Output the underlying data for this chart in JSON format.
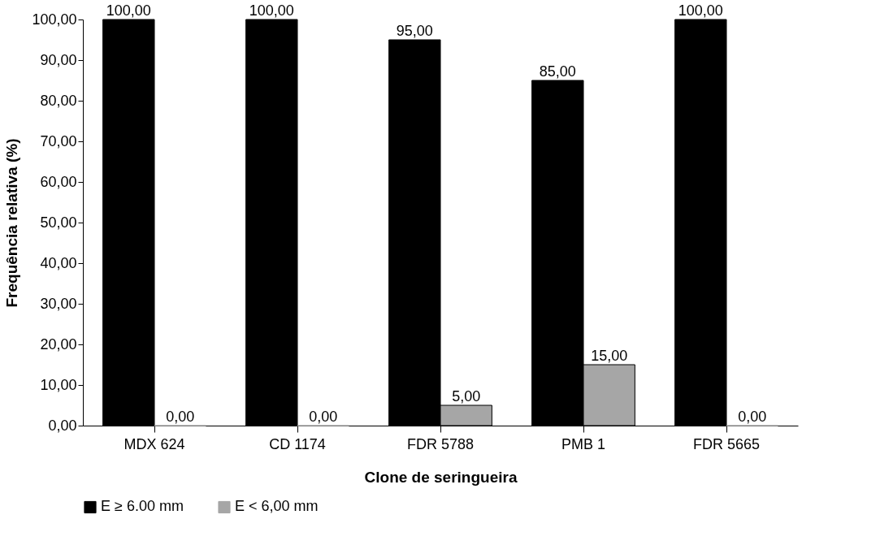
{
  "chart_data": {
    "type": "bar",
    "xlabel": "Clone de seringueira",
    "ylabel": "Frequência relativa (%)",
    "categories": [
      "MDX 624",
      "CD 1174",
      "FDR 5788",
      "PMB 1",
      "FDR 5665"
    ],
    "series": [
      {
        "name": "E ≥ 6.00 mm",
        "color": "#000000",
        "values": [
          100,
          100,
          95,
          85,
          100
        ],
        "value_labels": [
          "100,00",
          "100,00",
          "95,00",
          "85,00",
          "100,00"
        ]
      },
      {
        "name": "E < 6,00 mm",
        "color": "#a6a6a6",
        "values": [
          0,
          0,
          5,
          15,
          0
        ],
        "value_labels": [
          "0,00",
          "0,00",
          "5,00",
          "15,00",
          "0,00"
        ]
      }
    ],
    "ylim": [
      0,
      100
    ],
    "yticks": [
      {
        "value": 0,
        "label": "0,00"
      },
      {
        "value": 10,
        "label": "10,00"
      },
      {
        "value": 20,
        "label": "20,00"
      },
      {
        "value": 30,
        "label": "30,00"
      },
      {
        "value": 40,
        "label": "40,00"
      },
      {
        "value": 50,
        "label": "50,00"
      },
      {
        "value": 60,
        "label": "60,00"
      },
      {
        "value": 70,
        "label": "70,00"
      },
      {
        "value": 80,
        "label": "80,00"
      },
      {
        "value": 90,
        "label": "90,00"
      },
      {
        "value": 100,
        "label": "100,00"
      }
    ],
    "grid": false,
    "legend": "bottom"
  }
}
